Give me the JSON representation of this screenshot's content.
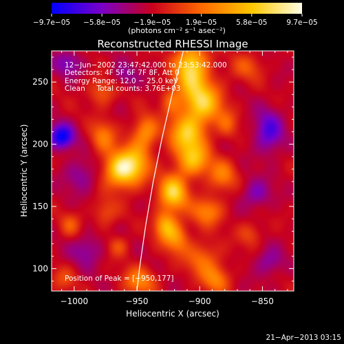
{
  "chart_data": {
    "type": "heatmap",
    "title": "Reconstructed RHESSI Image",
    "xlabel": "Heliocentric X (arcsec)",
    "ylabel": "Heliocentric Y (arcsec)",
    "xlim": [
      -1018,
      -825
    ],
    "ylim": [
      82,
      275
    ],
    "x_ticks": [
      {
        "value": -1000,
        "label": "−1000"
      },
      {
        "value": -950,
        "label": "−950"
      },
      {
        "value": -900,
        "label": "−900"
      },
      {
        "value": -850,
        "label": "−850"
      }
    ],
    "y_ticks": [
      {
        "value": 100,
        "label": "100"
      },
      {
        "value": 150,
        "label": "150"
      },
      {
        "value": 200,
        "label": "200"
      },
      {
        "value": 250,
        "label": "250"
      }
    ],
    "colorbar": {
      "min": -9.7e-05,
      "max": 9.7e-05,
      "tick_labels": [
        "−9.7e−05",
        "−5.8e−05",
        "−1.9e−05",
        "1.9e−05",
        "5.8e−05",
        "9.7e−05"
      ],
      "tick_values": [
        -9.7e-05,
        -5.8e-05,
        -1.9e-05,
        1.9e-05,
        5.8e-05,
        9.7e-05
      ],
      "units_label": "(photons cm⁻² s⁻¹ asec⁻²)",
      "colors": [
        "#0000ff",
        "#7a00c8",
        "#c8001e",
        "#ff6a00",
        "#ffc800",
        "#ffffe6"
      ]
    },
    "annotations": [
      "12−Jun−2002 23:47:42.000 to 23:53:42.000",
      "Detectors: 4F 5F 6F 7F 8F, Att 0",
      "Energy Range: 12.0 − 25.0 keV",
      "Clean     Total counts: 3.76E+03"
    ],
    "peak_label": "Position of Peak = [−950,177]",
    "peak": {
      "x": -950,
      "y": 177
    },
    "limb_points": [
      [
        -913,
        275
      ],
      [
        -922,
        240
      ],
      [
        -930,
        205
      ],
      [
        -937,
        170
      ],
      [
        -943,
        135
      ],
      [
        -948,
        100
      ],
      [
        -950,
        82
      ]
    ],
    "sources": [
      {
        "x": -963,
        "y": 180,
        "sx": 9,
        "sy": 10,
        "amp": 1.0
      },
      {
        "x": -943,
        "y": 210,
        "sx": 7,
        "sy": 9,
        "amp": 0.55
      },
      {
        "x": -950,
        "y": 185,
        "sx": 8,
        "sy": 12,
        "amp": 0.55
      },
      {
        "x": -907,
        "y": 262,
        "sx": 9,
        "sy": 13,
        "amp": 0.95
      },
      {
        "x": -898,
        "y": 234,
        "sx": 11,
        "sy": 12,
        "amp": 0.85
      },
      {
        "x": -910,
        "y": 208,
        "sx": 10,
        "sy": 11,
        "amp": 0.8
      },
      {
        "x": -905,
        "y": 187,
        "sx": 9,
        "sy": 9,
        "amp": 0.7
      },
      {
        "x": -921,
        "y": 161,
        "sx": 8,
        "sy": 10,
        "amp": 0.9
      },
      {
        "x": -928,
        "y": 135,
        "sx": 6,
        "sy": 8,
        "amp": 0.6
      },
      {
        "x": -894,
        "y": 146,
        "sx": 9,
        "sy": 8,
        "amp": 0.5
      },
      {
        "x": -882,
        "y": 175,
        "sx": 8,
        "sy": 9,
        "amp": 0.45
      },
      {
        "x": -919,
        "y": 125,
        "sx": 7,
        "sy": 9,
        "amp": 0.55
      },
      {
        "x": -898,
        "y": 108,
        "sx": 10,
        "sy": 10,
        "amp": 0.4
      },
      {
        "x": -887,
        "y": 91,
        "sx": 8,
        "sy": 8,
        "amp": 0.45
      },
      {
        "x": -948,
        "y": 90,
        "sx": 9,
        "sy": 8,
        "amp": 0.5
      },
      {
        "x": -977,
        "y": 206,
        "sx": 7,
        "sy": 9,
        "amp": 0.45
      },
      {
        "x": -978,
        "y": 242,
        "sx": 8,
        "sy": 8,
        "amp": 0.35
      },
      {
        "x": -923,
        "y": 235,
        "sx": 6,
        "sy": 8,
        "amp": 0.35
      },
      {
        "x": -878,
        "y": 216,
        "sx": 6,
        "sy": 8,
        "amp": 0.3
      },
      {
        "x": -1010,
        "y": 206,
        "sx": 7,
        "sy": 7,
        "amp": -0.75
      },
      {
        "x": -845,
        "y": 210,
        "sx": 8,
        "sy": 12,
        "amp": -0.5
      },
      {
        "x": -995,
        "y": 175,
        "sx": 9,
        "sy": 9,
        "amp": -0.3
      },
      {
        "x": -855,
        "y": 160,
        "sx": 8,
        "sy": 8,
        "amp": -0.35
      },
      {
        "x": -990,
        "y": 115,
        "sx": 9,
        "sy": 9,
        "amp": -0.3
      },
      {
        "x": -960,
        "y": 255,
        "sx": 8,
        "sy": 7,
        "amp": -0.25
      },
      {
        "x": -845,
        "y": 105,
        "sx": 8,
        "sy": 8,
        "amp": -0.3
      },
      {
        "x": -1005,
        "y": 265,
        "sx": 8,
        "sy": 7,
        "amp": -0.35
      },
      {
        "x": -975,
        "y": 145,
        "sx": 7,
        "sy": 8,
        "amp": 0.3
      },
      {
        "x": -862,
        "y": 262,
        "sx": 9,
        "sy": 8,
        "amp": 0.3
      },
      {
        "x": -1003,
        "y": 135,
        "sx": 6,
        "sy": 7,
        "amp": 0.3
      },
      {
        "x": -965,
        "y": 118,
        "sx": 6,
        "sy": 6,
        "amp": 0.3
      },
      {
        "x": -860,
        "y": 128,
        "sx": 7,
        "sy": 7,
        "amp": 0.28
      },
      {
        "x": -1008,
        "y": 92,
        "sx": 7,
        "sy": 7,
        "amp": 0.25
      }
    ],
    "background_level": -0.22,
    "grid": false,
    "legend": "none"
  },
  "footer": {
    "timestamp": "21−Apr−2013 03:15"
  }
}
